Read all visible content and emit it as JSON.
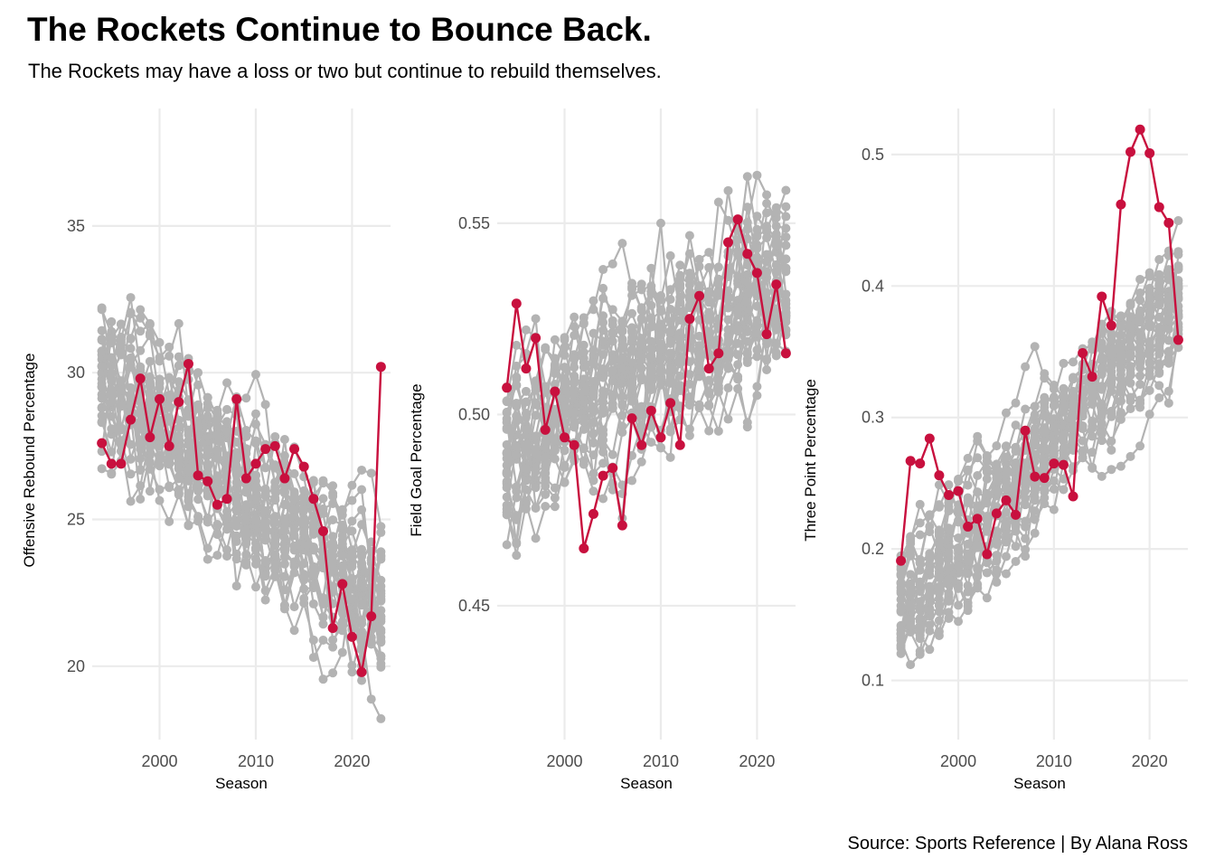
{
  "title": "The Rockets Continue to Bounce Back.",
  "subtitle": "The Rockets may have a loss or two but continue to rebuild themselves.",
  "caption": "Source: Sports Reference | By Alana Ross",
  "colors": {
    "highlight": "#c8103e",
    "others": "#b3b3b3",
    "grid": "#ebebeb"
  },
  "chart_data": [
    {
      "type": "line",
      "xlabel": "Season",
      "ylabel": "Offensive Rebound Percentage",
      "xlim": [
        1993,
        2024
      ],
      "ylim": [
        17.5,
        39
      ],
      "xticks": [
        2000,
        2010,
        2020
      ],
      "yticks": [
        20,
        25,
        30,
        35
      ],
      "highlight": {
        "x": [
          1994,
          1995,
          1996,
          1997,
          1998,
          1999,
          2000,
          2001,
          2002,
          2003,
          2004,
          2005,
          2006,
          2007,
          2008,
          2009,
          2010,
          2011,
          2012,
          2013,
          2014,
          2015,
          2016,
          2017,
          2018,
          2019,
          2020,
          2021,
          2022,
          2023
        ],
        "y": [
          27.6,
          26.9,
          26.9,
          28.4,
          29.8,
          27.8,
          29.1,
          27.5,
          29.0,
          30.3,
          26.5,
          26.3,
          25.5,
          25.7,
          29.1,
          26.4,
          26.9,
          27.4,
          27.5,
          26.4,
          27.4,
          26.8,
          25.7,
          24.6,
          21.3,
          22.8,
          21.0,
          19.8,
          21.7,
          30.2
        ]
      },
      "background_trend": {
        "start": 30,
        "end": 22,
        "spread": 3.4,
        "teams": 29
      }
    },
    {
      "type": "line",
      "xlabel": "Season",
      "ylabel": "Field Goal Percentage",
      "xlim": [
        1993,
        2024
      ],
      "ylim": [
        0.415,
        0.58
      ],
      "xticks": [
        2000,
        2010,
        2020
      ],
      "yticks": [
        0.45,
        0.5,
        0.55
      ],
      "highlight": {
        "x": [
          1994,
          1995,
          1996,
          1997,
          1998,
          1999,
          2000,
          2001,
          2002,
          2003,
          2004,
          2005,
          2006,
          2007,
          2008,
          2009,
          2010,
          2011,
          2012,
          2013,
          2014,
          2015,
          2016,
          2017,
          2018,
          2019,
          2020,
          2021,
          2022,
          2023
        ],
        "y": [
          0.507,
          0.529,
          0.512,
          0.52,
          0.496,
          0.506,
          0.494,
          0.492,
          0.465,
          0.474,
          0.484,
          0.486,
          0.471,
          0.499,
          0.492,
          0.501,
          0.494,
          0.503,
          0.492,
          0.525,
          0.531,
          0.512,
          0.516,
          0.545,
          0.551,
          0.542,
          0.537,
          0.521,
          0.534,
          0.516
        ]
      },
      "background_trend": {
        "start": 0.49,
        "end": 0.535,
        "spread": 0.028,
        "teams": 29
      }
    },
    {
      "type": "line",
      "xlabel": "Season",
      "ylabel": "Three Point Percentage",
      "xlim": [
        1993,
        2024
      ],
      "ylim": [
        0.055,
        0.535
      ],
      "xticks": [
        2000,
        2010,
        2020
      ],
      "yticks": [
        0.1,
        0.2,
        0.3,
        0.4,
        0.5
      ],
      "highlight": {
        "x": [
          1994,
          1995,
          1996,
          1997,
          1998,
          1999,
          2000,
          2001,
          2002,
          2003,
          2004,
          2005,
          2006,
          2007,
          2008,
          2009,
          2010,
          2011,
          2012,
          2013,
          2014,
          2015,
          2016,
          2017,
          2018,
          2019,
          2020,
          2021,
          2022,
          2023
        ],
        "y": [
          0.191,
          0.267,
          0.265,
          0.284,
          0.256,
          0.241,
          0.244,
          0.217,
          0.223,
          0.196,
          0.227,
          0.237,
          0.226,
          0.29,
          0.255,
          0.254,
          0.265,
          0.264,
          0.24,
          0.349,
          0.331,
          0.392,
          0.37,
          0.462,
          0.502,
          0.519,
          0.501,
          0.46,
          0.448,
          0.359
        ]
      },
      "background_trend": {
        "start": 0.15,
        "end": 0.39,
        "spread": 0.05,
        "teams": 29
      }
    }
  ]
}
